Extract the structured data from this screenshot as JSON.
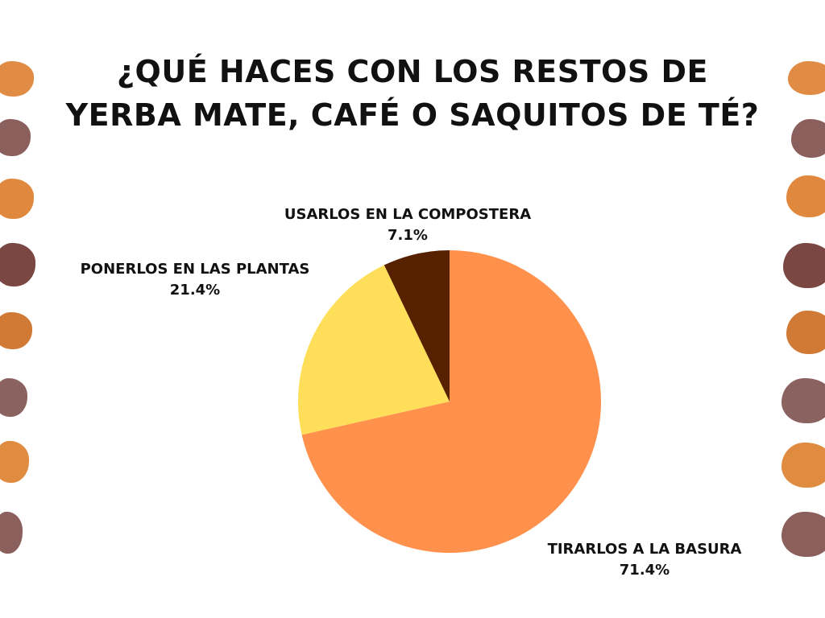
{
  "title_lines": [
    "¿QUÉ HACES CON LOS RESTOS DE",
    "YERBA MATE, CAFÉ O SAQUITOS DE TÉ?"
  ],
  "colors": {
    "text": "#111111",
    "background": "#ffffff",
    "decor_orange": "#e08c45",
    "decor_brown": "#8a5f5c"
  },
  "chart_data": {
    "type": "pie",
    "title": "¿QUÉ HACES CON LOS RESTOS DE YERBA MATE, CAFÉ O SAQUITOS DE TÉ?",
    "start_angle_deg": 0,
    "direction": "clockwise",
    "slices": [
      {
        "label": "TIRARLOS A LA BASURA",
        "value": 71.4,
        "value_label": "71.4%",
        "color": "#ff914d"
      },
      {
        "label": "PONERLOS EN LAS PLANTAS",
        "value": 21.4,
        "value_label": "21.4%",
        "color": "#ffde59"
      },
      {
        "label": "USARLOS EN LA COMPOSTERA",
        "value": 7.1,
        "value_label": "7.1%",
        "color": "#572100"
      }
    ]
  }
}
